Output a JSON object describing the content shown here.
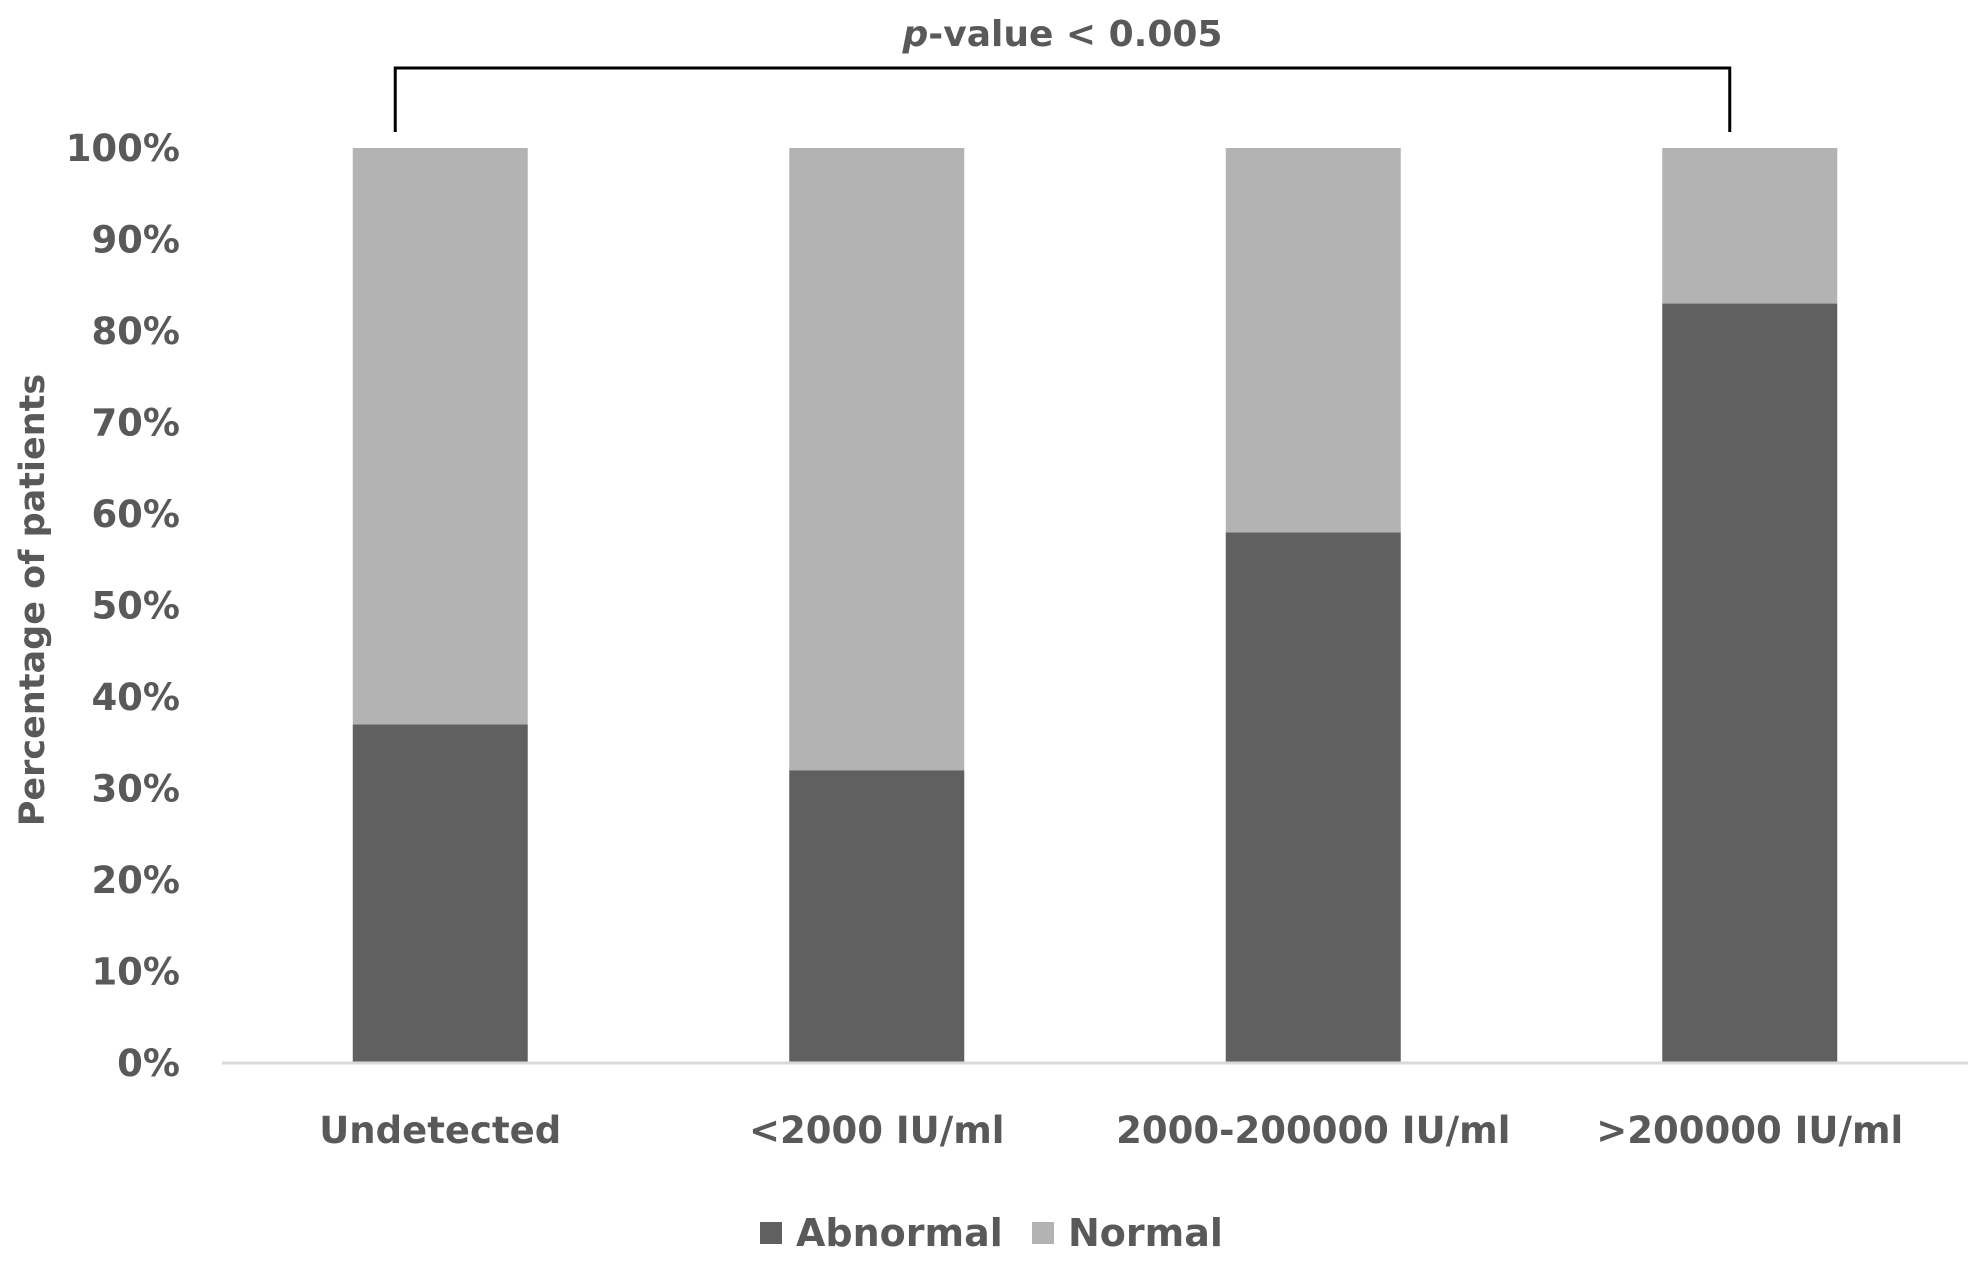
{
  "chart_data": {
    "type": "bar",
    "stacked": true,
    "categories": [
      "Undetected",
      "<2000 IU/ml",
      "2000-200000 IU/ml",
      ">200000 IU/ml"
    ],
    "series": [
      {
        "name": "Abnormal",
        "color": "#606060",
        "values": [
          37,
          32,
          58,
          83
        ]
      },
      {
        "name": "Normal",
        "color": "#b3b3b3",
        "values": [
          63,
          68,
          42,
          17
        ]
      }
    ],
    "ylabel": "Percentage of patients",
    "ylim": [
      0,
      100
    ],
    "yticks": [
      "0%",
      "10%",
      "20%",
      "30%",
      "40%",
      "50%",
      "60%",
      "70%",
      "80%",
      "90%",
      "100%"
    ],
    "legend_position": "bottom",
    "grid": false,
    "annotation": {
      "p_italic": "p",
      "text": "-value < 0.005",
      "from_category": "Undetected",
      "to_category": ">200000 IU/ml"
    }
  }
}
